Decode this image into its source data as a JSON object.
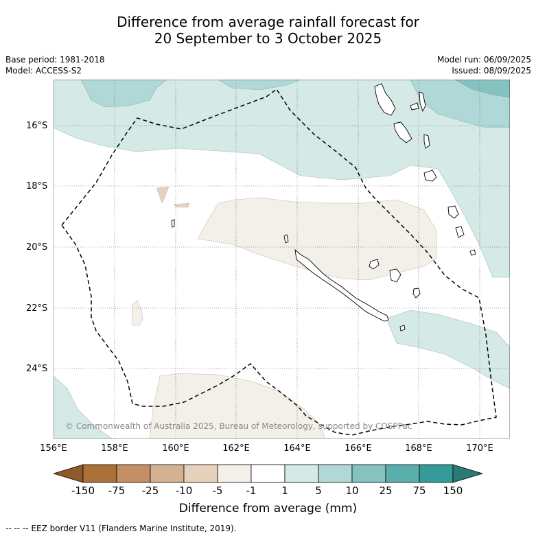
{
  "title_line1": "Difference from average rainfall forecast for",
  "title_line2": "20 September to 3 October 2025",
  "meta": {
    "base_period": "Base period: 1981-2018",
    "model": "Model: ACCESS-S2",
    "model_run": "Model run: 06/09/2025",
    "issued": "Issued: 08/09/2025"
  },
  "map": {
    "lat_labels": [
      "16°S",
      "18°S",
      "20°S",
      "22°S",
      "24°S"
    ],
    "lon_labels": [
      "156°E",
      "158°E",
      "160°E",
      "162°E",
      "164°E",
      "166°E",
      "168°E",
      "170°E"
    ],
    "copyright": "© Commonwealth of Australia 2025, Bureau of Meteorology, supported by COSPPac"
  },
  "colorbar": {
    "ticks": [
      "-150",
      "-75",
      "-25",
      "-10",
      "-5",
      "-1",
      "1",
      "5",
      "10",
      "25",
      "75",
      "150"
    ],
    "colors": [
      "#ab7137",
      "#c29064",
      "#d4b190",
      "#e6d1bd",
      "#f3efe9",
      "#ffffff",
      "#d5e9e7",
      "#b0d8d6",
      "#86c2c0",
      "#5aaeac",
      "#359b98",
      "#2a7a78"
    ],
    "extend_low_color": "#8e5a2a",
    "title": "Difference from average (mm)"
  },
  "footer": "--  --  -- EEZ border V11 (Flanders Marine Institute, 2019)."
}
